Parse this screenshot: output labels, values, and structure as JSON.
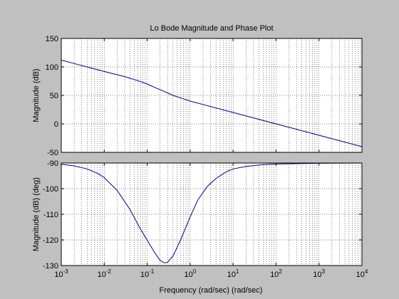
{
  "figure": {
    "background": "#c0c0c0",
    "axes_background": "#ffffff",
    "line_color": "#000080",
    "xlabel": "Frequency (rad/sec)  (rad/sec)"
  },
  "chart_data": [
    {
      "type": "line",
      "title": "Lo Bode Magnitude and Phase Plot",
      "xlabel": "",
      "ylabel": "Magnitude (dB)",
      "xscale": "log",
      "xlim": [
        0.001,
        10000
      ],
      "ylim": [
        -50,
        150
      ],
      "yticks": [
        -50,
        0,
        50,
        100,
        150
      ],
      "grid": true,
      "series": [
        {
          "color": "#000080",
          "x": [
            0.001,
            0.0025,
            0.01,
            0.03,
            0.06,
            0.1,
            0.15,
            0.25,
            0.4,
            0.7,
            1,
            2,
            10,
            100,
            1000,
            10000
          ],
          "y": [
            112,
            104,
            92,
            83,
            76,
            70,
            64,
            57,
            50,
            44,
            40,
            34,
            20,
            0,
            -20,
            -40
          ]
        }
      ]
    },
    {
      "type": "line",
      "title": "",
      "xlabel": "Frequency (rad/sec)  (rad/sec)",
      "ylabel": "Magnitude (dB)  (deg)",
      "xscale": "log",
      "xlim": [
        0.001,
        10000
      ],
      "ylim": [
        -130,
        -90
      ],
      "yticks": [
        -130,
        -120,
        -110,
        -100,
        -90
      ],
      "xticks": [
        "10^-3",
        "10^-2",
        "10^-1",
        "10^0",
        "10^1",
        "10^2",
        "10^3",
        "10^4"
      ],
      "grid": true,
      "series": [
        {
          "color": "#000080",
          "x": [
            0.001,
            0.002,
            0.004,
            0.007,
            0.01,
            0.02,
            0.04,
            0.07,
            0.1,
            0.15,
            0.2,
            0.25,
            0.3,
            0.4,
            0.6,
            1,
            1.5,
            2.5,
            4,
            7,
            10,
            20,
            50,
            100,
            1000,
            10000
          ],
          "y": [
            -90.5,
            -91.1,
            -92.3,
            -94,
            -95.7,
            -100.7,
            -108.2,
            -115.8,
            -120.1,
            -125,
            -128,
            -129,
            -128.7,
            -126.2,
            -120,
            -111,
            -104.5,
            -99.2,
            -96,
            -93.4,
            -92.3,
            -91.3,
            -90.6,
            -90.4,
            -90.1,
            -90
          ]
        }
      ]
    }
  ]
}
